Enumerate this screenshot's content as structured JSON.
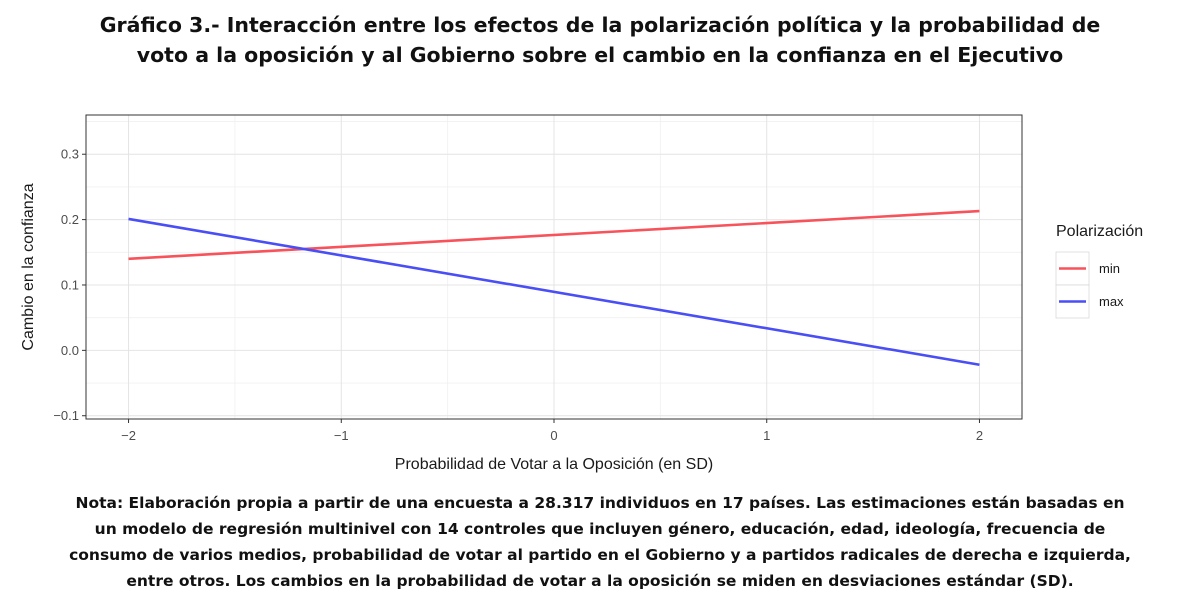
{
  "title_line1": "Gráfico 3.- Interacción entre los efectos de la polarización política y la probabilidad de",
  "title_line2": "voto a la oposición y al Gobierno sobre el cambio en la confianza en el Ejecutivo",
  "note_lines": [
    "Nota: Elaboración propia a partir de una encuesta a 28.317 individuos en 17 países. Las estimaciones están basadas en",
    "un modelo de regresión multinivel con 14 controles que incluyen género, educación, edad, ideología, frecuencia de",
    "consumo de varios medios, probabilidad de votar al partido en el Gobierno y a partidos radicales de derecha e izquierda,",
    "entre otros. Los cambios en la probabilidad de votar a la oposición se miden en desviaciones estándar (SD)."
  ],
  "chart_data": {
    "type": "line",
    "title": "Gráfico 3.- Interacción entre los efectos de la polarización política y la probabilidad de voto a la oposición y al Gobierno sobre el cambio en la confianza en el Ejecutivo",
    "xlabel": "Probabilidad de Votar a la Oposición (en SD)",
    "ylabel": "Cambio en la confianza",
    "xlim": [
      -2.2,
      2.2
    ],
    "ylim": [
      -0.105,
      0.36
    ],
    "xticks": [
      -2,
      -1,
      0,
      1,
      2
    ],
    "xtick_labels": [
      "−2",
      "−1",
      "0",
      "1",
      "2"
    ],
    "yticks": [
      -0.1,
      0.0,
      0.1,
      0.2,
      0.3
    ],
    "ytick_labels": [
      "−0.1",
      "0.0",
      "0.1",
      "0.2",
      "0.3"
    ],
    "grid": true,
    "legend_title": "Polarización",
    "legend_position": "right",
    "series": [
      {
        "name": "min",
        "color": "#f8525a",
        "x": [
          -2,
          2
        ],
        "y": [
          0.14,
          0.213
        ]
      },
      {
        "name": "max",
        "color": "#4a4ef5",
        "x": [
          -2,
          2
        ],
        "y": [
          0.201,
          -0.022
        ]
      }
    ]
  }
}
